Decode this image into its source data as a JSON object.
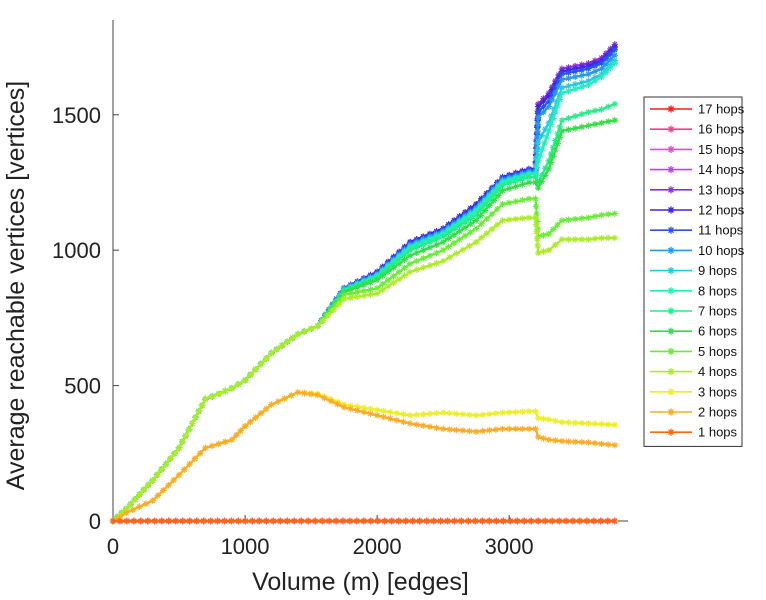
{
  "chart_data": {
    "type": "line",
    "title": "",
    "xlabel": "Volume (m) [edges]",
    "ylabel": "Average reachable vertices [vertices]",
    "xlim": [
      0,
      3900
    ],
    "ylim": [
      0,
      1850
    ],
    "xticks": [
      0,
      1000,
      2000,
      3000
    ],
    "yticks": [
      0,
      500,
      1000,
      1500
    ],
    "grid": false,
    "legend_position": "right",
    "series": [
      {
        "name": "17 hops",
        "color": "#ff1a1a",
        "x": [
          0,
          3800
        ],
        "y": [
          0,
          0
        ]
      },
      {
        "name": "16 hops",
        "color": "#ff3c8c",
        "x": [
          0,
          3800
        ],
        "y": [
          0,
          0
        ]
      },
      {
        "name": "15 hops",
        "color": "#ee44dd",
        "x": [
          0,
          3800
        ],
        "y": [
          0,
          0
        ]
      },
      {
        "name": "14 hops",
        "color": "#c040ee",
        "x": [
          0,
          3800
        ],
        "y": [
          0,
          0
        ]
      },
      {
        "name": "13 hops",
        "color": "#8a2ee6",
        "x": [
          0,
          100,
          300,
          500,
          700,
          900,
          1000,
          1200,
          1400,
          1550,
          1750,
          2000,
          2250,
          2500,
          2750,
          2950,
          3150,
          3200,
          3220,
          3300,
          3400,
          3600,
          3700,
          3800
        ],
        "y": [
          0,
          45,
          150,
          270,
          450,
          490,
          520,
          620,
          690,
          720,
          860,
          920,
          1030,
          1080,
          1170,
          1270,
          1300,
          1300,
          1540,
          1580,
          1670,
          1690,
          1710,
          1760
        ]
      },
      {
        "name": "12 hops",
        "color": "#4422dd",
        "x": [
          0,
          100,
          300,
          500,
          700,
          900,
          1000,
          1200,
          1400,
          1550,
          1750,
          2000,
          2250,
          2500,
          2750,
          2950,
          3150,
          3200,
          3220,
          3300,
          3400,
          3600,
          3700,
          3800
        ],
        "y": [
          0,
          45,
          150,
          270,
          450,
          490,
          520,
          620,
          690,
          720,
          860,
          920,
          1030,
          1080,
          1170,
          1270,
          1300,
          1300,
          1530,
          1570,
          1660,
          1680,
          1700,
          1750
        ]
      },
      {
        "name": "11 hops",
        "color": "#2255ee",
        "x": [
          0,
          100,
          300,
          500,
          700,
          900,
          1000,
          1200,
          1400,
          1550,
          1750,
          2000,
          2250,
          2500,
          2750,
          2950,
          3150,
          3200,
          3220,
          3300,
          3400,
          3600,
          3700,
          3800
        ],
        "y": [
          0,
          45,
          150,
          270,
          450,
          490,
          520,
          620,
          690,
          720,
          860,
          915,
          1025,
          1075,
          1160,
          1265,
          1295,
          1295,
          1510,
          1550,
          1650,
          1670,
          1690,
          1740
        ]
      },
      {
        "name": "10 hops",
        "color": "#2299ee",
        "x": [
          0,
          100,
          300,
          500,
          700,
          900,
          1000,
          1200,
          1400,
          1550,
          1750,
          2000,
          2250,
          2500,
          2750,
          2950,
          3150,
          3200,
          3220,
          3300,
          3400,
          3600,
          3700,
          3800
        ],
        "y": [
          0,
          45,
          150,
          270,
          450,
          490,
          520,
          620,
          690,
          720,
          858,
          912,
          1020,
          1070,
          1155,
          1260,
          1290,
          1290,
          1490,
          1530,
          1630,
          1650,
          1670,
          1720
        ]
      },
      {
        "name": "9 hops",
        "color": "#22ccdd",
        "x": [
          0,
          100,
          300,
          500,
          700,
          900,
          1000,
          1200,
          1400,
          1550,
          1750,
          2000,
          2250,
          2500,
          2750,
          2950,
          3150,
          3200,
          3220,
          3300,
          3400,
          3600,
          3700,
          3800
        ],
        "y": [
          0,
          45,
          150,
          270,
          450,
          490,
          520,
          620,
          690,
          720,
          855,
          908,
          1015,
          1065,
          1150,
          1255,
          1285,
          1285,
          1400,
          1470,
          1600,
          1625,
          1650,
          1700
        ]
      },
      {
        "name": "8 hops",
        "color": "#22eebb",
        "x": [
          0,
          100,
          300,
          500,
          700,
          900,
          1000,
          1200,
          1400,
          1550,
          1750,
          2000,
          2250,
          2500,
          2750,
          2950,
          3150,
          3200,
          3220,
          3300,
          3400,
          3600,
          3700,
          3800
        ],
        "y": [
          0,
          45,
          150,
          270,
          450,
          490,
          520,
          620,
          690,
          720,
          852,
          905,
          1010,
          1060,
          1145,
          1250,
          1280,
          1280,
          1330,
          1440,
          1580,
          1610,
          1640,
          1690
        ]
      },
      {
        "name": "7 hops",
        "color": "#22ee88",
        "x": [
          0,
          100,
          300,
          500,
          700,
          900,
          1000,
          1200,
          1400,
          1550,
          1750,
          2000,
          2250,
          2500,
          2750,
          2950,
          3150,
          3200,
          3220,
          3300,
          3400,
          3600,
          3700,
          3800
        ],
        "y": [
          0,
          45,
          150,
          270,
          450,
          490,
          520,
          620,
          690,
          720,
          850,
          900,
          1000,
          1050,
          1130,
          1240,
          1270,
          1270,
          1250,
          1330,
          1480,
          1510,
          1520,
          1540
        ]
      },
      {
        "name": "6 hops",
        "color": "#33dd44",
        "x": [
          0,
          100,
          300,
          500,
          700,
          900,
          1000,
          1200,
          1400,
          1550,
          1750,
          2000,
          2250,
          2500,
          2750,
          2950,
          3150,
          3200,
          3220,
          3300,
          3400,
          3600,
          3700,
          3800
        ],
        "y": [
          0,
          45,
          150,
          270,
          450,
          490,
          520,
          620,
          690,
          720,
          845,
          890,
          980,
          1030,
          1110,
          1220,
          1250,
          1250,
          1230,
          1300,
          1440,
          1460,
          1470,
          1480
        ]
      },
      {
        "name": "5 hops",
        "color": "#66ee33",
        "x": [
          0,
          100,
          300,
          500,
          700,
          900,
          1000,
          1200,
          1400,
          1550,
          1750,
          2000,
          2250,
          2500,
          2750,
          2950,
          3150,
          3200,
          3220,
          3300,
          3400,
          3600,
          3700,
          3800
        ],
        "y": [
          0,
          45,
          150,
          270,
          450,
          490,
          520,
          620,
          690,
          720,
          835,
          860,
          950,
          1000,
          1080,
          1170,
          1190,
          1190,
          1050,
          1060,
          1110,
          1120,
          1130,
          1135
        ]
      },
      {
        "name": "4 hops",
        "color": "#aaee22",
        "x": [
          0,
          100,
          300,
          500,
          700,
          900,
          1000,
          1200,
          1400,
          1550,
          1750,
          2000,
          2250,
          2500,
          2750,
          2950,
          3150,
          3200,
          3220,
          3300,
          3400,
          3600,
          3700,
          3800
        ],
        "y": [
          0,
          45,
          150,
          270,
          450,
          490,
          520,
          620,
          690,
          720,
          820,
          840,
          920,
          960,
          1030,
          1110,
          1120,
          1120,
          990,
          1000,
          1040,
          1040,
          1045,
          1045
        ]
      },
      {
        "name": "3 hops",
        "color": "#eeee22",
        "x": [
          0,
          100,
          300,
          500,
          700,
          900,
          1000,
          1200,
          1400,
          1550,
          1750,
          2000,
          2250,
          2500,
          2750,
          2950,
          3150,
          3200,
          3220,
          3300,
          3400,
          3600,
          3700,
          3800
        ],
        "y": [
          0,
          30,
          75,
          170,
          270,
          300,
          350,
          430,
          475,
          470,
          430,
          410,
          390,
          400,
          390,
          400,
          405,
          405,
          380,
          375,
          365,
          360,
          358,
          355
        ]
      },
      {
        "name": "2 hops",
        "color": "#ffaa22",
        "x": [
          0,
          100,
          300,
          500,
          700,
          900,
          1000,
          1200,
          1400,
          1550,
          1750,
          2000,
          2250,
          2500,
          2750,
          2950,
          3150,
          3200,
          3220,
          3300,
          3400,
          3600,
          3700,
          3800
        ],
        "y": [
          0,
          30,
          75,
          170,
          270,
          300,
          350,
          430,
          475,
          465,
          420,
          390,
          360,
          340,
          330,
          340,
          340,
          340,
          310,
          300,
          295,
          290,
          285,
          280
        ]
      },
      {
        "name": "1 hops",
        "color": "#ff6611",
        "x": [
          0,
          3800
        ],
        "y": [
          0,
          0
        ]
      }
    ]
  }
}
